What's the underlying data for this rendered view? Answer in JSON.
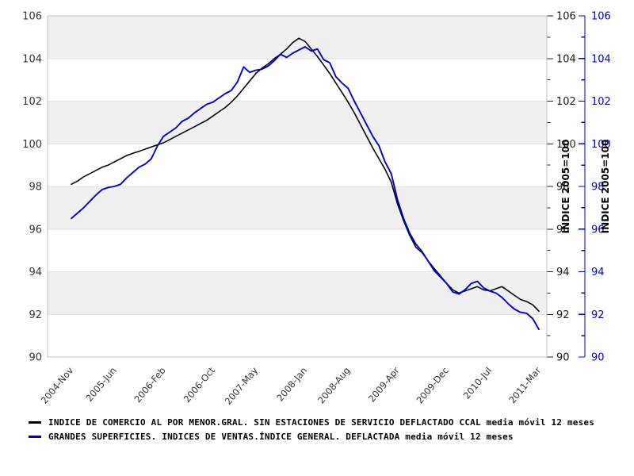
{
  "chart_data": {
    "type": "line",
    "title": "",
    "xlabel": "",
    "ylabel_left": "",
    "ylabel_right_1": "INDICE 2005=100",
    "ylabel_right_2": "INDICE 2005=100",
    "ylim": [
      90,
      106
    ],
    "y_ticks": [
      90,
      92,
      94,
      96,
      98,
      100,
      102,
      104,
      106
    ],
    "grid": "horizontal-bands",
    "band_fill": "#f0f0f0",
    "gridline_color": "#e2e2e2",
    "border_color": "#c0c0c0",
    "tick_label_color": "#333333",
    "legend_position": "bottom-left",
    "x_tick_labels": [
      {
        "index": 0,
        "label": "2004-Nov"
      },
      {
        "index": 7,
        "label": "2005-Jun"
      },
      {
        "index": 15,
        "label": "2006-Feb"
      },
      {
        "index": 23,
        "label": "2006-Oct"
      },
      {
        "index": 30,
        "label": "2007-May"
      },
      {
        "index": 38,
        "label": "2008-Jan"
      },
      {
        "index": 45,
        "label": "2008-Aug"
      },
      {
        "index": 53,
        "label": "2009-Apr"
      },
      {
        "index": 61,
        "label": "2009-Dec"
      },
      {
        "index": 68,
        "label": "2010-Jul"
      },
      {
        "index": 76,
        "label": "2011-Mar"
      }
    ],
    "x": [
      "2004-Nov",
      "2004-Dec",
      "2005-Jan",
      "2005-Feb",
      "2005-Mar",
      "2005-Apr",
      "2005-May",
      "2005-Jun",
      "2005-Jul",
      "2005-Aug",
      "2005-Sep",
      "2005-Oct",
      "2005-Nov",
      "2005-Dec",
      "2006-Jan",
      "2006-Feb",
      "2006-Mar",
      "2006-Apr",
      "2006-May",
      "2006-Jun",
      "2006-Jul",
      "2006-Aug",
      "2006-Sep",
      "2006-Oct",
      "2006-Nov",
      "2006-Dec",
      "2007-Jan",
      "2007-Feb",
      "2007-Mar",
      "2007-Apr",
      "2007-May",
      "2007-Jun",
      "2007-Jul",
      "2007-Aug",
      "2007-Sep",
      "2007-Oct",
      "2007-Nov",
      "2007-Dec",
      "2008-Jan",
      "2008-Feb",
      "2008-Mar",
      "2008-Apr",
      "2008-May",
      "2008-Jun",
      "2008-Jul",
      "2008-Aug",
      "2008-Sep",
      "2008-Oct",
      "2008-Nov",
      "2008-Dec",
      "2009-Jan",
      "2009-Feb",
      "2009-Mar",
      "2009-Apr",
      "2009-May",
      "2009-Jun",
      "2009-Jul",
      "2009-Aug",
      "2009-Sep",
      "2009-Oct",
      "2009-Nov",
      "2009-Dec",
      "2010-Jan",
      "2010-Feb",
      "2010-Mar",
      "2010-Apr",
      "2010-May",
      "2010-Jun",
      "2010-Jul",
      "2010-Aug",
      "2010-Sep",
      "2010-Oct",
      "2010-Nov",
      "2010-Dec",
      "2011-Jan",
      "2011-Feb",
      "2011-Mar"
    ],
    "series": [
      {
        "name": "INDICE DE COMERCIO AL POR MENOR.GRAL. SIN ESTACIONES DE SERVICIO DEFLACTADO CCAL media móvil 12 meses",
        "color": "#000000",
        "width": 1.6,
        "values": [
          98.1,
          98.25,
          98.45,
          98.6,
          98.75,
          98.9,
          99.0,
          99.15,
          99.3,
          99.45,
          99.55,
          99.65,
          99.75,
          99.85,
          99.95,
          100.05,
          100.2,
          100.35,
          100.5,
          100.65,
          100.8,
          100.95,
          101.1,
          101.3,
          101.5,
          101.7,
          101.95,
          102.25,
          102.6,
          102.95,
          103.3,
          103.55,
          103.75,
          104.0,
          104.2,
          104.45,
          104.75,
          104.95,
          104.8,
          104.45,
          104.1,
          103.7,
          103.3,
          102.85,
          102.4,
          101.95,
          101.45,
          100.9,
          100.35,
          99.8,
          99.3,
          98.8,
          98.2,
          97.2,
          96.4,
          95.7,
          95.15,
          94.9,
          94.5,
          94.15,
          93.8,
          93.45,
          93.15,
          93.0,
          93.1,
          93.2,
          93.3,
          93.15,
          93.1,
          93.2,
          93.3,
          93.1,
          92.9,
          92.7,
          92.6,
          92.45,
          92.15
        ]
      },
      {
        "name": "GRANDES SUPERFICIES. INDICES DE VENTAS.ÍNDICE GENERAL. DEFLACTADA media móvil 12 meses",
        "color": "#0000cc",
        "width": 1.9,
        "values": [
          96.5,
          96.75,
          97.0,
          97.3,
          97.6,
          97.85,
          97.95,
          98.0,
          98.1,
          98.4,
          98.65,
          98.9,
          99.05,
          99.3,
          99.9,
          100.35,
          100.55,
          100.75,
          101.05,
          101.2,
          101.45,
          101.65,
          101.85,
          101.95,
          102.15,
          102.35,
          102.5,
          102.9,
          103.6,
          103.35,
          103.45,
          103.5,
          103.65,
          103.9,
          104.2,
          104.05,
          104.25,
          104.4,
          104.55,
          104.35,
          104.45,
          103.95,
          103.8,
          103.15,
          102.85,
          102.6,
          102.0,
          101.45,
          100.9,
          100.35,
          99.9,
          99.15,
          98.6,
          97.4,
          96.5,
          95.8,
          95.3,
          94.95,
          94.5,
          94.05,
          93.75,
          93.45,
          93.05,
          92.95,
          93.15,
          93.45,
          93.55,
          93.25,
          93.1,
          93.0,
          92.8,
          92.5,
          92.25,
          92.1,
          92.05,
          91.8,
          91.3
        ]
      }
    ]
  }
}
